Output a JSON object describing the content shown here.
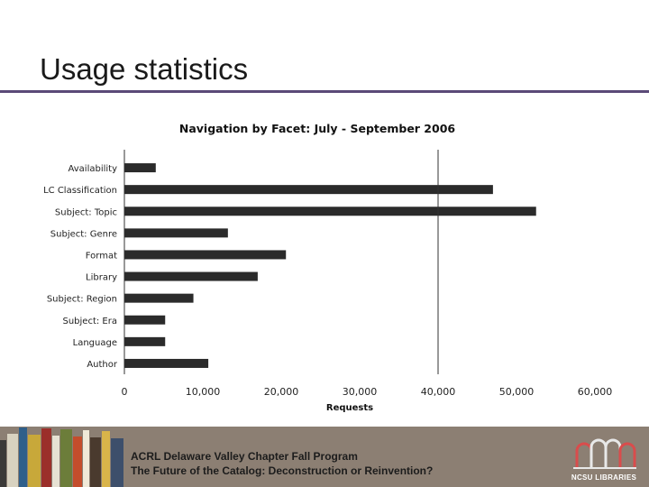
{
  "slide": {
    "title": "Usage statistics"
  },
  "footer": {
    "line1": "ACRL Delaware Valley Chapter Fall Program",
    "line2": "The Future of the Catalog: Deconstruction or Reinvention?",
    "logo_text": "NCSU LIBRARIES"
  },
  "colors": {
    "accent_rule": "#5b4a78",
    "footer_bg": "#8c7f73",
    "bar_fill": "#2b2b2b",
    "logo_arcs": "#e8e8e8"
  },
  "chart_data": {
    "type": "bar",
    "orientation": "horizontal",
    "title": "Navigation by Facet: July - September 2006",
    "xlabel": "Requests",
    "ylabel": "",
    "categories": [
      "Availability",
      "LC Classification",
      "Subject: Topic",
      "Subject: Genre",
      "Format",
      "Library",
      "Subject: Region",
      "Subject: Era",
      "Language",
      "Author"
    ],
    "values": [
      4000,
      47000,
      52500,
      13200,
      20600,
      17000,
      8800,
      5200,
      5200,
      10700
    ],
    "xlim": [
      0,
      60000
    ],
    "xticks": [
      "0",
      "10,000",
      "20,000",
      "30,000",
      "40,000",
      "50,000",
      "60,000"
    ],
    "xtick_values": [
      0,
      10000,
      20000,
      30000,
      40000,
      50000,
      60000
    ],
    "reference_line": 40000,
    "grid": false,
    "legend": "none"
  }
}
